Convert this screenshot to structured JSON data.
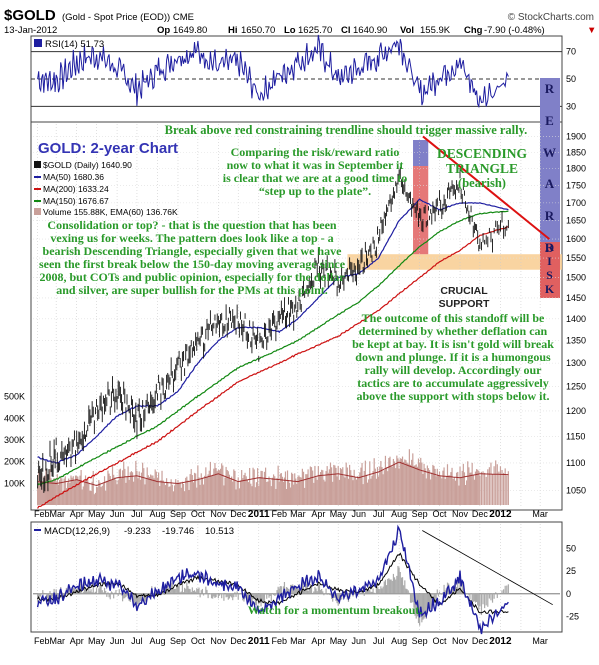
{
  "header": {
    "symbol": "$GOLD",
    "description": "(Gold - Spot Price (EOD)) CME",
    "watermark": "© StockCharts.com",
    "date": "13-Jan-2012",
    "open_label": "Op",
    "open": "1649.80",
    "high_label": "Hi",
    "high": "1650.70",
    "low_label": "Lo",
    "low": "1625.70",
    "close_label": "Cl",
    "close": "1640.90",
    "volume_label": "Vol",
    "volume": "155.9K",
    "change_label": "Chg",
    "change": "-7.90 (-0.48%)",
    "change_arrow": "▼"
  },
  "rsi_legend": "RSI(14) 51.73",
  "macd_legend_prefix": "MACD(12,26,9)",
  "macd_values": [
    "-9.233",
    "-19.746",
    "10.513"
  ],
  "price_legend": {
    "series": "$GOLD (Daily) 1640.90",
    "ma50": "MA(50) 1680.36",
    "ma200": "MA(200) 1633.24",
    "ma150": "MA(150) 1676.67",
    "volume": "Volume 155.88K, EMA(60) 136.76K"
  },
  "annotations": {
    "title": "GOLD: 2-year Chart",
    "break_above": "Break above red constraining trendline should trigger massive rally.",
    "risk_reward": "Comparing the risk/reward ratio now to what it was in September it is clear that we are at a good time to “step up to the plate”.",
    "descending": "DESCENDING TRIANGLE",
    "bearish": "(bearish)",
    "consolidation": "Consolidation or top? - that is the question that has been vexing us for weeks. The pattern does look like a top - a bearish Descending Triangle, especially given that we have seen the first break below the 150-day moving average since 2008, but COTs and public opinion, especially for the dollar and silver, are super bullish for the PMs at this point.",
    "crucial_support": "CRUCIAL SUPPORT",
    "outcome": "The outcome of this standoff will be determined by whether deflation can be kept at bay. It is isn't gold will break down and plunge. If it is a humongous rally will develop. Accordingly our tactics are to accumulate aggressively above the support with stops below it.",
    "momentum": "Watch for a momentum breakout.",
    "reward_letters": [
      "R",
      "E",
      "W",
      "A",
      "R",
      "D"
    ],
    "risk_letters": [
      "R",
      "I",
      "S",
      "K"
    ]
  },
  "colors": {
    "up": "#111111",
    "ma50": "#1e1ea0",
    "ma200": "#cc1111",
    "ma150": "#118811",
    "annotation": "#2a9a2a",
    "rsi": "#1e1ea0",
    "reward": "#8080c8",
    "risk": "#e06060",
    "support": "#f8cc90",
    "volume": "#c9a09a"
  },
  "chart_data": [
    {
      "type": "line",
      "name": "RSI(14)",
      "x": [
        "2010-02-01",
        "2010-03-01",
        "2010-04-01",
        "2010-05-01",
        "2010-06-01",
        "2010-07-01",
        "2010-08-01",
        "2010-09-01",
        "2010-10-01",
        "2010-11-01",
        "2010-12-01",
        "2011-01-01",
        "2011-02-01",
        "2011-03-01",
        "2011-04-01",
        "2011-05-01",
        "2011-06-01",
        "2011-07-01",
        "2011-08-01",
        "2011-09-01",
        "2011-10-01",
        "2011-11-01",
        "2011-12-01",
        "2012-01-13"
      ],
      "values": [
        50,
        48,
        62,
        68,
        58,
        42,
        55,
        66,
        70,
        60,
        63,
        38,
        52,
        62,
        72,
        50,
        58,
        66,
        78,
        38,
        52,
        62,
        34,
        51.73
      ],
      "ylim": [
        20,
        80
      ],
      "yticks": [
        30,
        50,
        70
      ],
      "reference_lines": [
        30,
        50,
        70
      ]
    },
    {
      "type": "line",
      "name": "$GOLD (Daily)",
      "log_scale": true,
      "x": [
        "2010-02-01",
        "2010-03-01",
        "2010-04-01",
        "2010-05-01",
        "2010-06-01",
        "2010-07-01",
        "2010-08-01",
        "2010-09-01",
        "2010-10-01",
        "2010-11-01",
        "2010-12-01",
        "2011-01-01",
        "2011-02-01",
        "2011-03-01",
        "2011-04-01",
        "2011-05-01",
        "2011-06-01",
        "2011-07-01",
        "2011-08-01",
        "2011-09-01",
        "2011-10-01",
        "2011-11-01",
        "2011-12-01",
        "2012-01-13"
      ],
      "series": [
        {
          "name": "$GOLD",
          "values": [
            1070,
            1110,
            1135,
            1200,
            1240,
            1180,
            1230,
            1290,
            1340,
            1390,
            1400,
            1340,
            1400,
            1430,
            1530,
            1490,
            1530,
            1600,
            1780,
            1650,
            1690,
            1760,
            1580,
            1640.9
          ]
        },
        {
          "name": "MA(50)",
          "values": [
            1110,
            1100,
            1115,
            1150,
            1190,
            1210,
            1210,
            1240,
            1300,
            1350,
            1380,
            1380,
            1370,
            1400,
            1450,
            1500,
            1510,
            1550,
            1650,
            1710,
            1680,
            1700,
            1700,
            1680.36
          ]
        },
        {
          "name": "MA(200)",
          "values": [
            1020,
            1040,
            1060,
            1080,
            1100,
            1120,
            1140,
            1170,
            1200,
            1230,
            1260,
            1280,
            1300,
            1320,
            1340,
            1360,
            1390,
            1420,
            1460,
            1500,
            1540,
            1570,
            1610,
            1633.24
          ]
        },
        {
          "name": "MA(150)",
          "values": [
            1060,
            1070,
            1090,
            1110,
            1130,
            1150,
            1170,
            1200,
            1230,
            1260,
            1290,
            1310,
            1330,
            1350,
            1380,
            1410,
            1440,
            1480,
            1530,
            1580,
            1620,
            1650,
            1670,
            1676.67
          ]
        }
      ],
      "yticks": [
        1050,
        1100,
        1150,
        1200,
        1250,
        1300,
        1350,
        1400,
        1450,
        1500,
        1550,
        1600,
        1650,
        1700,
        1750,
        1800,
        1850,
        1900
      ],
      "ylim": [
        1020,
        1940
      ],
      "volume_ticks": [
        "100K",
        "200K",
        "300K",
        "400K",
        "500K"
      ],
      "volume_ylim": [
        0,
        600
      ],
      "volume_values": [
        120,
        110,
        130,
        100,
        140,
        150,
        120,
        110,
        130,
        160,
        120,
        140,
        130,
        120,
        150,
        160,
        140,
        170,
        220,
        180,
        150,
        140,
        160,
        155.88
      ],
      "trendline": {
        "from": [
          "2011-09-06",
          1900
        ],
        "to": [
          "2012-03-15",
          1600
        ]
      },
      "support_band": [
        1520,
        1560
      ]
    },
    {
      "type": "line",
      "name": "MACD(12,26,9)",
      "x": [
        "2010-02-01",
        "2010-03-01",
        "2010-04-01",
        "2010-05-01",
        "2010-06-01",
        "2010-07-01",
        "2010-08-01",
        "2010-09-01",
        "2010-10-01",
        "2010-11-01",
        "2010-12-01",
        "2011-01-01",
        "2011-02-01",
        "2011-03-01",
        "2011-04-01",
        "2011-05-01",
        "2011-06-01",
        "2011-07-01",
        "2011-08-01",
        "2011-09-01",
        "2011-10-01",
        "2011-11-01",
        "2011-12-01",
        "2012-01-13"
      ],
      "series": [
        {
          "name": "MACD",
          "values": [
            -10,
            -5,
            8,
            15,
            10,
            -12,
            2,
            18,
            22,
            10,
            8,
            -22,
            -5,
            8,
            20,
            -6,
            4,
            16,
            70,
            -22,
            -8,
            18,
            -38,
            -9.233
          ]
        },
        {
          "name": "Signal",
          "values": [
            -6,
            -6,
            2,
            10,
            12,
            -2,
            -2,
            10,
            18,
            14,
            10,
            -8,
            -10,
            0,
            12,
            4,
            2,
            10,
            45,
            10,
            -12,
            6,
            -20,
            -19.746
          ]
        }
      ],
      "ylim": [
        -40,
        75
      ],
      "yticks": [
        -25,
        0,
        25,
        50
      ]
    }
  ],
  "x_axis": {
    "labels": [
      "FebMar",
      "Apr",
      "May",
      "Jun",
      "Jul",
      "Aug",
      "Sep",
      "Oct",
      "Nov",
      "Dec",
      "2011",
      "Feb",
      "Mar",
      "Apr",
      "May",
      "Jun",
      "Jul",
      "Aug",
      "Sep",
      "Oct",
      "Nov",
      "Dec",
      "2012",
      "Mar"
    ]
  }
}
